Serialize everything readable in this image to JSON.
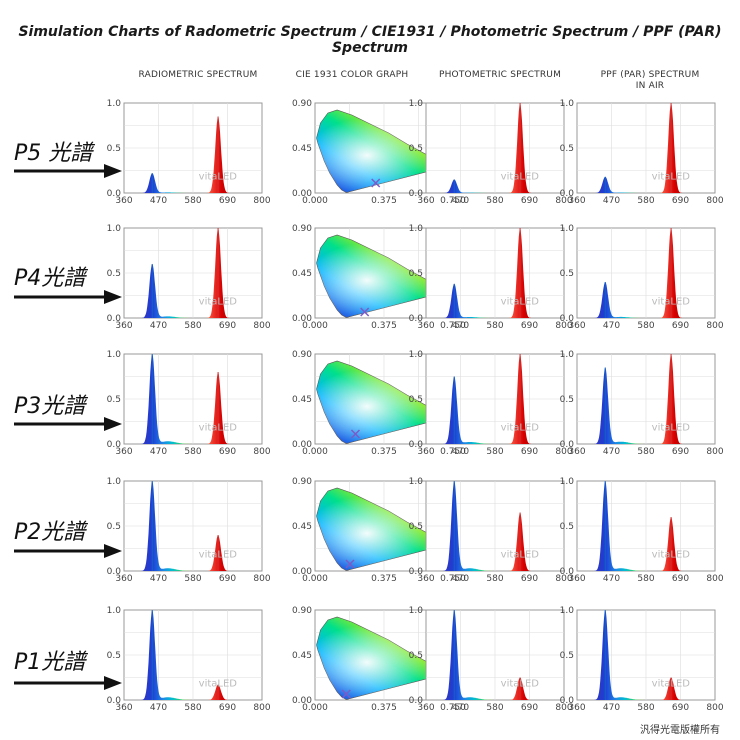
{
  "title": "Simulation Charts of Radometric Spectrum / CIE1931 / Photometric Spectrum / PPF (PAR) Spectrum",
  "columns": [
    {
      "label_line1": "RADIOMETRIC SPECTRUM",
      "label_line2": ""
    },
    {
      "label_line1": "CIE 1931 COLOR GRAPH",
      "label_line2": ""
    },
    {
      "label_line1": "PHOTOMETRIC SPECTRUM",
      "label_line2": ""
    },
    {
      "label_line1": "PPF (PAR) SPECTRUM",
      "label_line2": "IN AIR"
    }
  ],
  "rows": [
    {
      "label": "P5 光譜"
    },
    {
      "label": "P4光譜"
    },
    {
      "label": "P3光譜"
    },
    {
      "label": "P2光譜"
    },
    {
      "label": "P1光譜"
    }
  ],
  "watermark": "vitaLED",
  "copyright": "汎得光電版權所有",
  "colors": {
    "blue_peak": "#1565c0",
    "red_peak": "#d32f2f",
    "cyan": "#00bcd4",
    "grid": "#cccccc"
  },
  "chart_data": [
    {
      "type": "area",
      "name": "radiometric-spectrum",
      "series": [
        {
          "row": "P5",
          "blue_peak": 0.22,
          "red_peak": 0.85
        },
        {
          "row": "P4",
          "blue_peak": 0.6,
          "red_peak": 1.0
        },
        {
          "row": "P3",
          "blue_peak": 1.0,
          "red_peak": 0.8
        },
        {
          "row": "P2",
          "blue_peak": 1.0,
          "red_peak": 0.4
        },
        {
          "row": "P1",
          "blue_peak": 1.0,
          "red_peak": 0.17
        }
      ],
      "x_ticks": [
        "360",
        "470",
        "580",
        "690",
        "800"
      ],
      "y_ticks": [
        "0.0",
        "0.5",
        "1.0"
      ],
      "xlim": [
        360,
        800
      ],
      "ylim": [
        0,
        1.0
      ],
      "blue_center_nm": 450,
      "red_center_nm": 660
    },
    {
      "type": "scatter",
      "name": "cie-1931-color-graph",
      "series": [
        {
          "row": "P5",
          "x": 0.33,
          "y": 0.1
        },
        {
          "row": "P4",
          "x": 0.27,
          "y": 0.06
        },
        {
          "row": "P3",
          "x": 0.22,
          "y": 0.1
        },
        {
          "row": "P2",
          "x": 0.19,
          "y": 0.07
        },
        {
          "row": "P1",
          "x": 0.17,
          "y": 0.06
        }
      ],
      "x_ticks": [
        "0.000",
        "0.375",
        "0.750"
      ],
      "y_ticks": [
        "0.00",
        "0.45",
        "0.90"
      ],
      "xlim": [
        0,
        0.75
      ],
      "ylim": [
        0,
        0.9
      ]
    },
    {
      "type": "area",
      "name": "photometric-spectrum",
      "series": [
        {
          "row": "P5",
          "blue_peak": 0.15,
          "red_peak": 1.0
        },
        {
          "row": "P4",
          "blue_peak": 0.38,
          "red_peak": 1.0
        },
        {
          "row": "P3",
          "blue_peak": 0.75,
          "red_peak": 1.0
        },
        {
          "row": "P2",
          "blue_peak": 1.0,
          "red_peak": 0.65
        },
        {
          "row": "P1",
          "blue_peak": 1.0,
          "red_peak": 0.25
        }
      ],
      "x_ticks": [
        "360",
        "470",
        "580",
        "690",
        "800"
      ],
      "y_ticks": [
        "0.0",
        "0.5",
        "1.0"
      ],
      "xlim": [
        360,
        800
      ],
      "ylim": [
        0,
        1.0
      ],
      "blue_center_nm": 450,
      "red_center_nm": 660
    },
    {
      "type": "area",
      "name": "ppf-par-spectrum",
      "series": [
        {
          "row": "P5",
          "blue_peak": 0.18,
          "red_peak": 1.0
        },
        {
          "row": "P4",
          "blue_peak": 0.4,
          "red_peak": 1.0
        },
        {
          "row": "P3",
          "blue_peak": 0.85,
          "red_peak": 1.0
        },
        {
          "row": "P2",
          "blue_peak": 1.0,
          "red_peak": 0.6
        },
        {
          "row": "P1",
          "blue_peak": 1.0,
          "red_peak": 0.25
        }
      ],
      "x_ticks": [
        "360",
        "470",
        "580",
        "690",
        "800"
      ],
      "y_ticks": [
        "0.0",
        "0.5",
        "1.0"
      ],
      "xlim": [
        360,
        800
      ],
      "ylim": [
        0,
        1.0
      ],
      "blue_center_nm": 450,
      "red_center_nm": 660
    }
  ]
}
